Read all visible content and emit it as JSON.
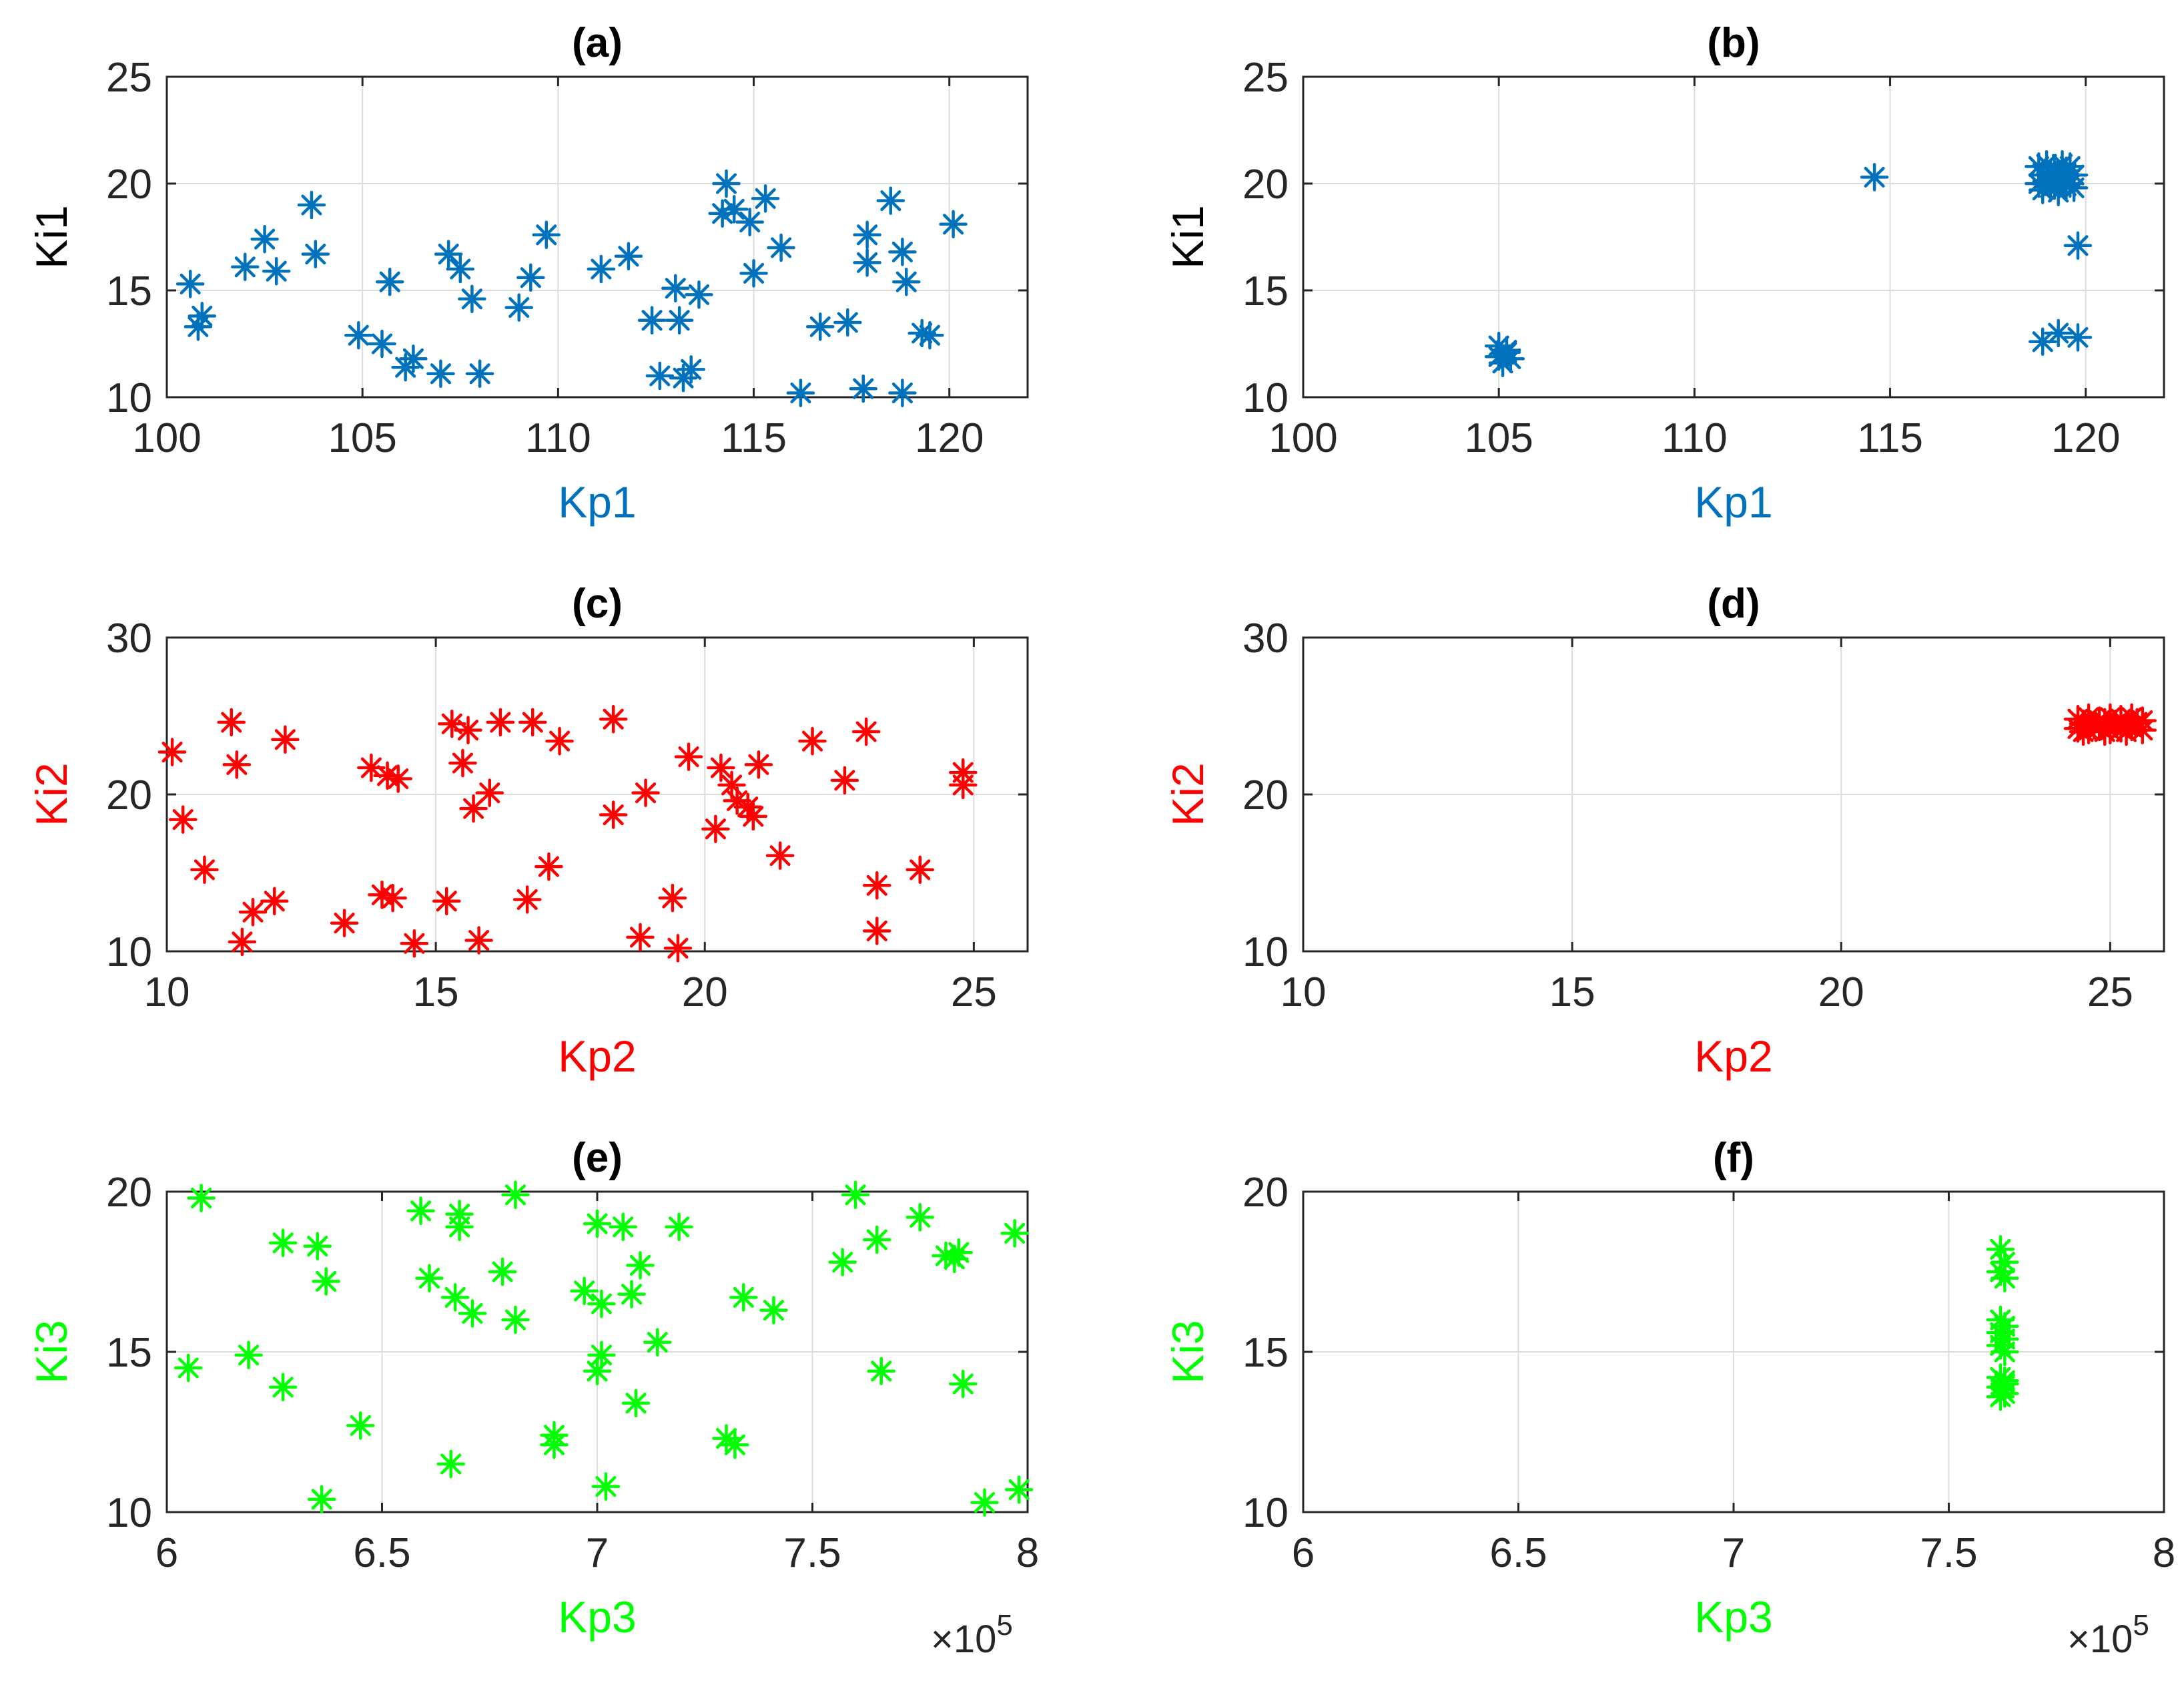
{
  "colors": {
    "blue": "#0072BD",
    "red": "#FF0000",
    "green": "#00FF00"
  },
  "chart_data": [
    {
      "type": "scatter",
      "title": "(a)",
      "xlabel": "Kp1",
      "ylabel": "Ki1",
      "label_color": "#0072BD",
      "xlabel_color": "#0072BD",
      "ylabel_color": "#000000",
      "xlim": [
        100,
        122
      ],
      "ylim": [
        10,
        25
      ],
      "xticks": [
        100,
        105,
        110,
        115,
        120
      ],
      "yticks": [
        10,
        15,
        20,
        25
      ],
      "xtick_labels": [
        "100",
        "105",
        "110",
        "115",
        "120"
      ],
      "ytick_labels": [
        "10",
        "15",
        "20",
        "25"
      ],
      "marker": "*",
      "color": "#0072BD",
      "x": [
        100.6,
        100.9,
        100.8,
        102.0,
        102.5,
        102.8,
        103.7,
        103.8,
        104.9,
        105.5,
        105.7,
        106.1,
        106.3,
        107.0,
        107.2,
        107.5,
        107.8,
        108.0,
        109.0,
        109.3,
        109.7,
        111.1,
        111.8,
        112.4,
        112.6,
        113.0,
        113.1,
        113.2,
        113.4,
        113.6,
        114.2,
        114.3,
        114.5,
        114.9,
        115.0,
        115.3,
        115.7,
        116.2,
        116.7,
        117.4,
        117.8,
        117.9,
        117.9,
        118.5,
        118.8,
        118.8,
        118.9,
        119.3,
        119.5,
        120.1
      ],
      "y": [
        15.3,
        13.8,
        13.3,
        16.1,
        17.4,
        15.9,
        19.0,
        16.7,
        12.9,
        12.5,
        15.4,
        11.4,
        11.8,
        11.1,
        16.7,
        16.0,
        14.6,
        11.1,
        14.2,
        15.6,
        17.6,
        16.0,
        16.6,
        13.6,
        11.0,
        15.1,
        13.6,
        10.9,
        11.3,
        14.8,
        18.6,
        20.0,
        18.8,
        18.2,
        15.8,
        19.3,
        17.0,
        10.2,
        13.3,
        13.5,
        10.4,
        17.6,
        16.3,
        19.2,
        10.2,
        16.8,
        15.4,
        13.0,
        12.9,
        18.1
      ]
    },
    {
      "type": "scatter",
      "title": "(b)",
      "xlabel": "Kp1",
      "ylabel": "Ki1",
      "label_color": "#0072BD",
      "xlabel_color": "#0072BD",
      "ylabel_color": "#000000",
      "xlim": [
        100,
        122
      ],
      "ylim": [
        10,
        25
      ],
      "xticks": [
        100,
        105,
        110,
        115,
        120
      ],
      "yticks": [
        10,
        15,
        20,
        25
      ],
      "xtick_labels": [
        "100",
        "105",
        "110",
        "115",
        "120"
      ],
      "ytick_labels": [
        "10",
        "15",
        "20",
        "25"
      ],
      "marker": "*",
      "color": "#0072BD",
      "x": [
        105.0,
        105.2,
        105.3,
        105.1,
        105.2,
        105.0,
        114.6,
        118.8,
        119.0,
        119.2,
        119.4,
        119.6,
        118.9,
        119.1,
        119.3,
        119.5,
        119.7,
        118.8,
        119.0,
        119.2,
        119.4,
        119.6,
        118.9,
        119.1,
        119.3,
        119.5,
        119.7,
        119.2,
        119.8,
        118.9,
        119.3,
        119.8
      ],
      "y": [
        12.4,
        12.1,
        11.8,
        11.6,
        12.2,
        11.9,
        20.3,
        20.8,
        20.9,
        20.7,
        20.9,
        20.8,
        20.4,
        20.5,
        20.3,
        20.6,
        20.4,
        20.0,
        20.1,
        19.9,
        20.2,
        20.0,
        19.7,
        19.8,
        19.6,
        19.9,
        19.8,
        20.4,
        17.1,
        12.6,
        13.0,
        12.8
      ]
    },
    {
      "type": "scatter",
      "title": "(c)",
      "xlabel": "Kp2",
      "ylabel": "Ki2",
      "label_color": "#FF0000",
      "xlabel_color": "#FF0000",
      "ylabel_color": "#FF0000",
      "xlim": [
        10,
        26
      ],
      "ylim": [
        10,
        30
      ],
      "xticks": [
        10,
        15,
        20,
        25
      ],
      "yticks": [
        10,
        20,
        30
      ],
      "xtick_labels": [
        "10",
        "15",
        "20",
        "25"
      ],
      "ytick_labels": [
        "10",
        "20",
        "30"
      ],
      "marker": "*",
      "color": "#FF0000",
      "x": [
        10.1,
        10.3,
        10.7,
        11.2,
        11.3,
        11.4,
        11.6,
        12.0,
        12.2,
        13.3,
        13.8,
        14.0,
        14.1,
        14.2,
        14.3,
        14.6,
        15.2,
        15.3,
        15.5,
        15.6,
        15.7,
        15.8,
        16.0,
        16.2,
        16.7,
        16.8,
        17.1,
        17.3,
        18.3,
        18.3,
        18.8,
        18.9,
        19.4,
        19.5,
        19.7,
        20.2,
        20.3,
        20.5,
        20.6,
        20.8,
        20.9,
        21.0,
        21.4,
        22.0,
        22.6,
        23.0,
        23.2,
        23.2,
        24.0,
        24.8,
        24.8
      ],
      "y": [
        22.7,
        18.4,
        15.2,
        24.6,
        21.9,
        10.6,
        12.5,
        13.2,
        23.5,
        11.8,
        21.7,
        13.6,
        21.2,
        13.4,
        21.0,
        10.5,
        13.2,
        24.5,
        22.0,
        24.1,
        19.1,
        10.7,
        20.1,
        24.6,
        13.3,
        24.6,
        15.4,
        23.4,
        24.8,
        18.7,
        10.9,
        20.1,
        13.4,
        10.2,
        22.4,
        17.8,
        21.7,
        20.6,
        19.6,
        19.2,
        18.6,
        21.9,
        16.1,
        23.4,
        20.9,
        24.0,
        14.2,
        11.3,
        15.2,
        21.4,
        20.6
      ]
    },
    {
      "type": "scatter",
      "title": "(d)",
      "xlabel": "Kp2",
      "ylabel": "Ki2",
      "label_color": "#FF0000",
      "xlabel_color": "#FF0000",
      "ylabel_color": "#FF0000",
      "xlim": [
        10,
        26
      ],
      "ylim": [
        10,
        30
      ],
      "xticks": [
        10,
        15,
        20,
        25
      ],
      "yticks": [
        10,
        20,
        30
      ],
      "xtick_labels": [
        "10",
        "15",
        "20",
        "25"
      ],
      "ytick_labels": [
        "10",
        "20",
        "30"
      ],
      "marker": "*",
      "color": "#FF0000",
      "x": [
        24.4,
        24.6,
        24.8,
        25.0,
        25.2,
        25.4,
        25.6,
        24.5,
        24.7,
        24.9,
        25.1,
        25.3,
        25.5,
        24.4,
        24.6,
        24.8,
        25.0,
        25.2,
        25.4,
        25.6,
        24.5,
        24.9,
        25.3
      ],
      "y": [
        24.8,
        24.9,
        24.7,
        24.9,
        24.8,
        24.9,
        24.7,
        24.5,
        24.4,
        24.6,
        24.5,
        24.4,
        24.6,
        24.2,
        24.1,
        24.3,
        24.1,
        24.2,
        24.3,
        24.1,
        24.0,
        24.0,
        24.0
      ]
    },
    {
      "type": "scatter",
      "title": "(e)",
      "xlabel": "Kp3",
      "ylabel": "Ki3",
      "label_color": "#00FF00",
      "xlabel_color": "#00FF00",
      "ylabel_color": "#00FF00",
      "xlim": [
        6,
        8
      ],
      "ylim": [
        10,
        20
      ],
      "x_multiplier_text": "×10",
      "x_multiplier_exponent": "5",
      "xticks": [
        6,
        6.5,
        7,
        7.5,
        8
      ],
      "yticks": [
        10,
        15,
        20
      ],
      "xtick_labels": [
        "6",
        "6.5",
        "7",
        "7.5",
        "8"
      ],
      "ytick_labels": [
        "10",
        "15",
        "20"
      ],
      "marker": "*",
      "color": "#00FF00",
      "x": [
        6.05,
        6.08,
        6.19,
        6.27,
        6.27,
        6.35,
        6.36,
        6.37,
        6.45,
        6.59,
        6.61,
        6.66,
        6.67,
        6.68,
        6.68,
        6.71,
        6.78,
        6.81,
        6.81,
        6.9,
        6.9,
        6.97,
        7.0,
        7.0,
        7.01,
        7.01,
        7.02,
        7.06,
        7.08,
        7.09,
        7.1,
        7.14,
        7.19,
        7.3,
        7.32,
        7.34,
        7.41,
        7.57,
        7.6,
        7.65,
        7.66,
        7.75,
        7.81,
        7.83,
        7.84,
        7.85,
        7.9,
        7.97,
        7.98
      ],
      "y": [
        14.5,
        19.8,
        14.9,
        18.4,
        13.9,
        18.3,
        10.4,
        17.2,
        12.7,
        19.4,
        17.3,
        11.5,
        16.7,
        19.3,
        18.9,
        16.2,
        17.5,
        19.9,
        16.0,
        12.4,
        12.1,
        16.9,
        19.0,
        14.4,
        16.5,
        14.9,
        10.8,
        18.9,
        16.8,
        13.4,
        17.7,
        15.3,
        18.9,
        12.3,
        12.1,
        16.7,
        16.3,
        17.8,
        19.9,
        18.5,
        14.4,
        19.2,
        18.0,
        17.9,
        18.1,
        14.0,
        10.3,
        18.7,
        10.7
      ]
    },
    {
      "type": "scatter",
      "title": "(f)",
      "xlabel": "Kp3",
      "ylabel": "Ki3",
      "label_color": "#00FF00",
      "xlabel_color": "#00FF00",
      "ylabel_color": "#00FF00",
      "xlim": [
        6,
        8
      ],
      "ylim": [
        10,
        20
      ],
      "x_multiplier_text": "×10",
      "x_multiplier_exponent": "5",
      "xticks": [
        6,
        6.5,
        7,
        7.5,
        8
      ],
      "yticks": [
        10,
        15,
        20
      ],
      "xtick_labels": [
        "6",
        "6.5",
        "7",
        "7.5",
        "8"
      ],
      "ytick_labels": [
        "10",
        "15",
        "20"
      ],
      "marker": "*",
      "color": "#00FF00",
      "x": [
        7.62,
        7.63,
        7.62,
        7.63,
        7.62,
        7.63,
        7.62,
        7.63,
        7.62,
        7.63,
        7.62,
        7.63,
        7.62,
        7.63,
        7.62,
        7.63
      ],
      "y": [
        18.2,
        17.8,
        17.5,
        17.3,
        16.0,
        15.8,
        15.6,
        15.4,
        15.2,
        15.0,
        14.2,
        14.0,
        13.9,
        13.7,
        13.6,
        14.1
      ]
    }
  ]
}
